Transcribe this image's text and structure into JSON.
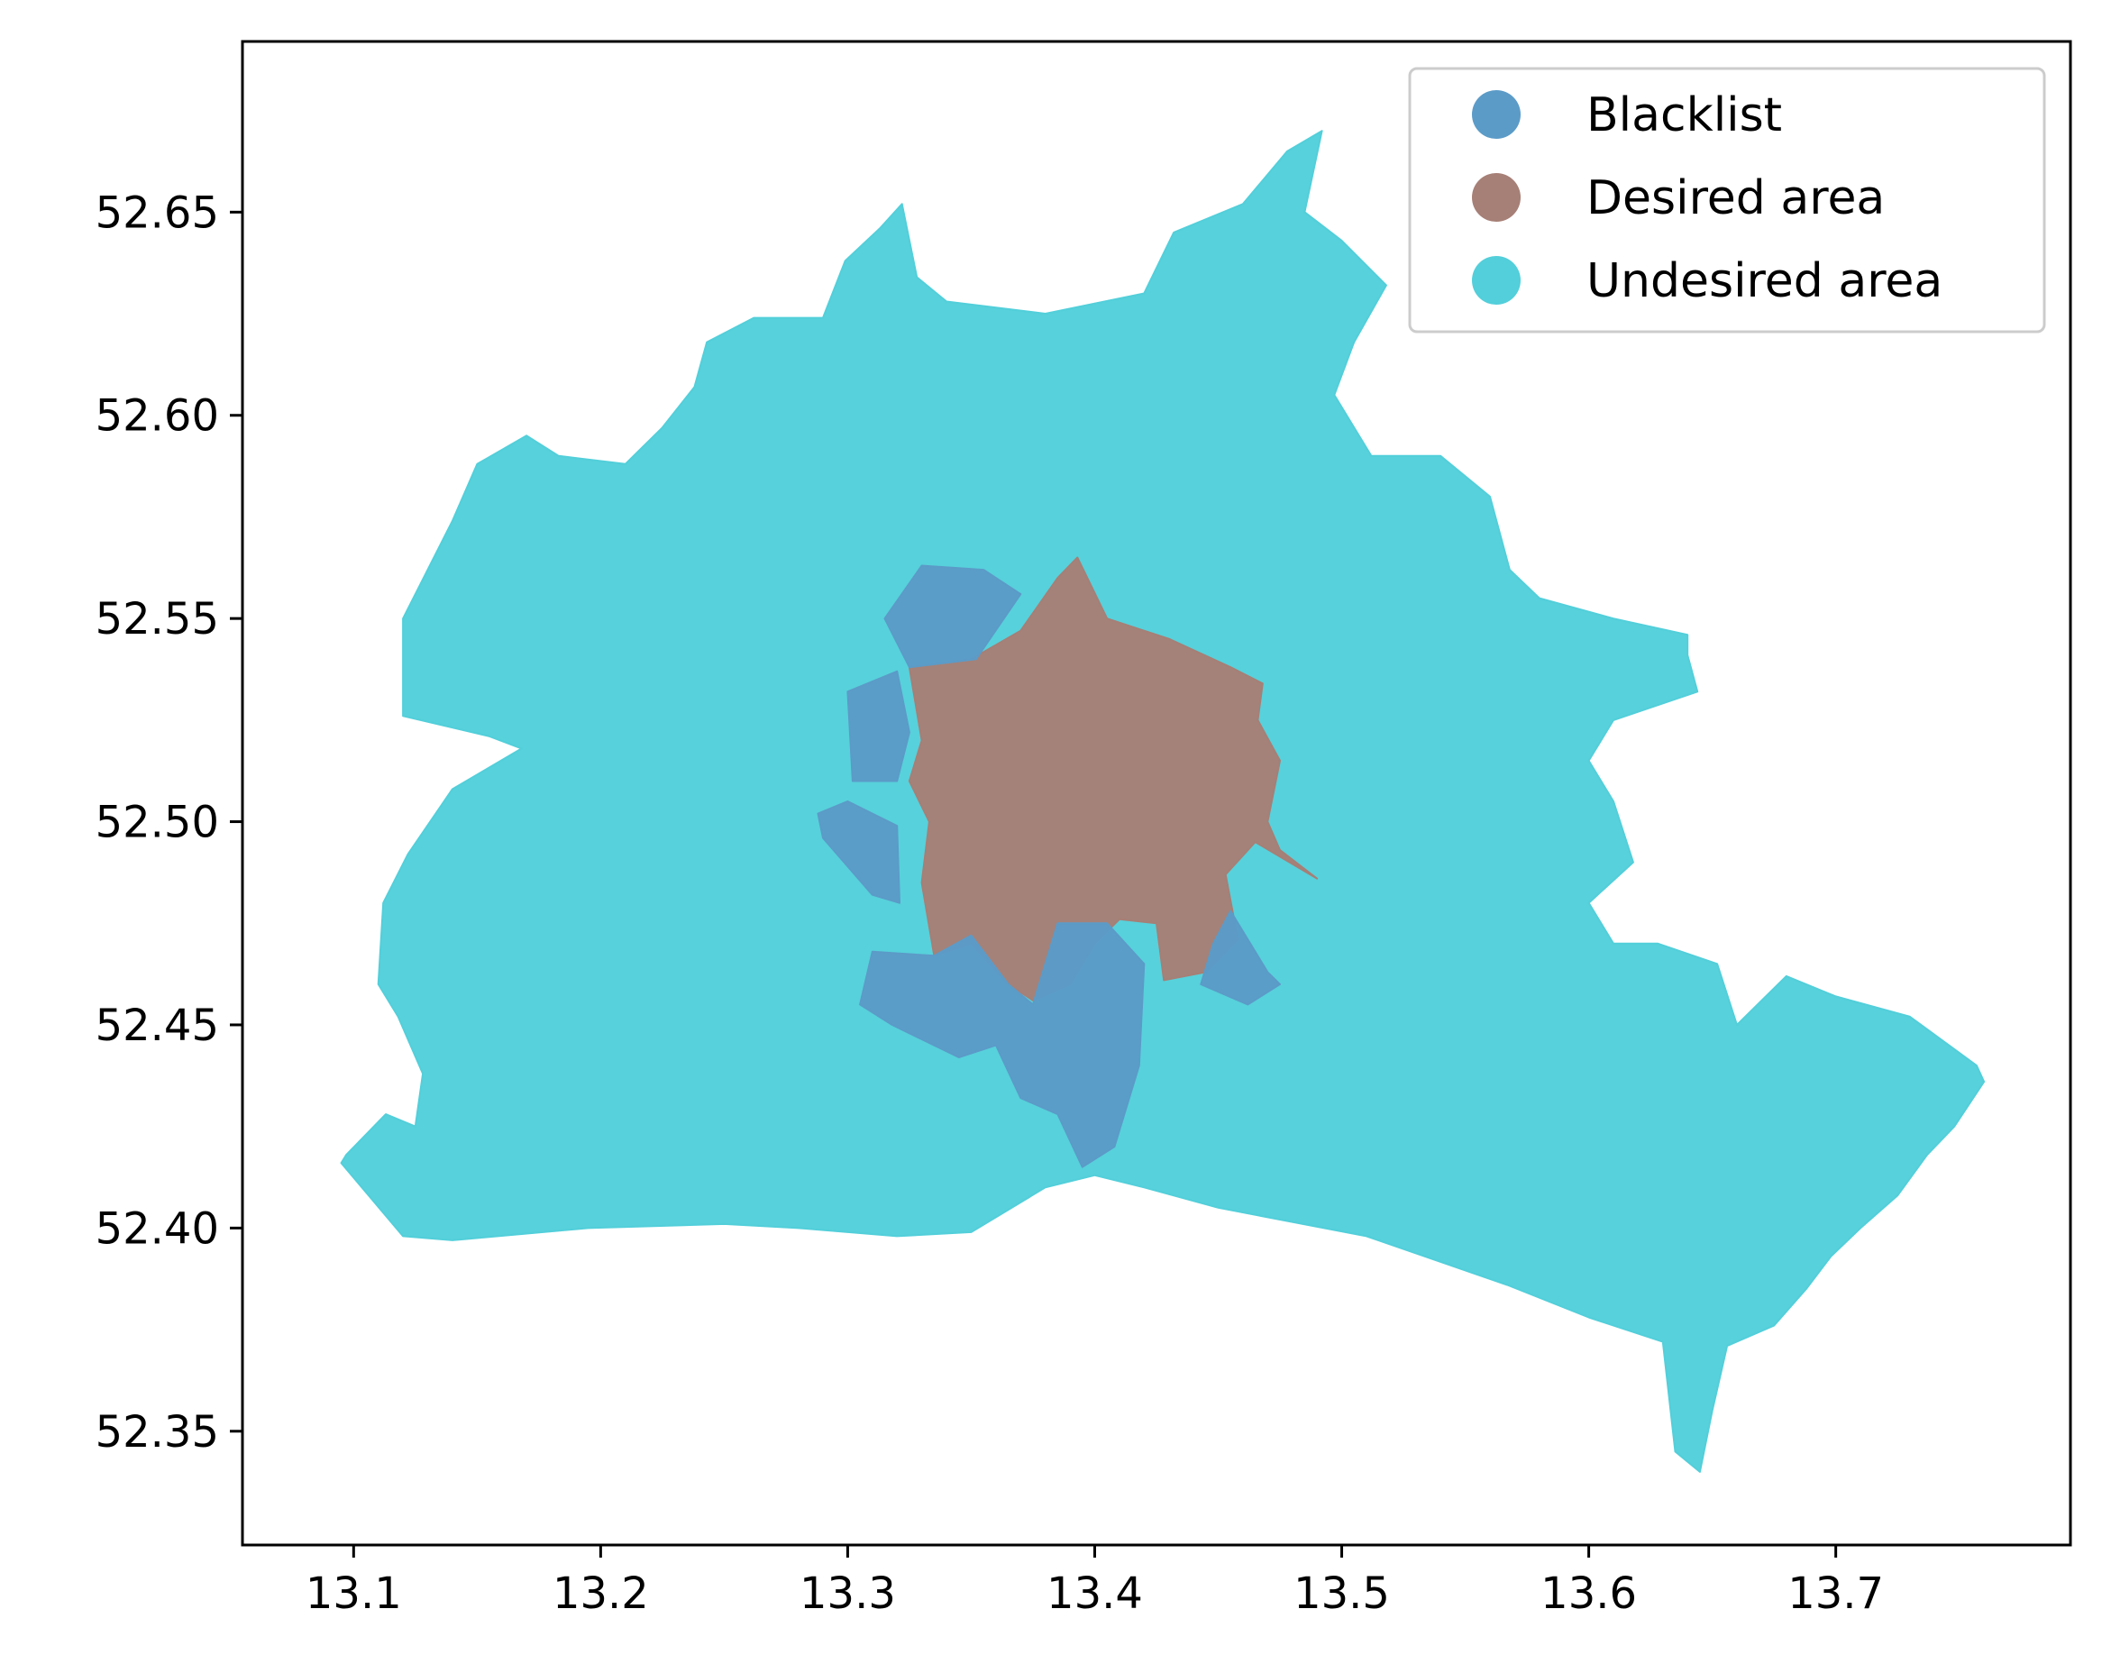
{
  "chart_data": {
    "type": "choropleth-map",
    "title": "",
    "xlabel": "",
    "ylabel": "",
    "xlim": [
      13.055,
      13.795
    ],
    "ylim": [
      52.322,
      52.692
    ],
    "xticks": [
      {
        "value": 13.1,
        "label": "13.1"
      },
      {
        "value": 13.2,
        "label": "13.2"
      },
      {
        "value": 13.3,
        "label": "13.3"
      },
      {
        "value": 13.4,
        "label": "13.4"
      },
      {
        "value": 13.5,
        "label": "13.5"
      },
      {
        "value": 13.6,
        "label": "13.6"
      },
      {
        "value": 13.7,
        "label": "13.7"
      }
    ],
    "yticks": [
      {
        "value": 52.35,
        "label": "52.35"
      },
      {
        "value": 52.4,
        "label": "52.40"
      },
      {
        "value": 52.45,
        "label": "52.45"
      },
      {
        "value": 52.5,
        "label": "52.50"
      },
      {
        "value": 52.55,
        "label": "52.55"
      },
      {
        "value": 52.6,
        "label": "52.60"
      },
      {
        "value": 52.65,
        "label": "52.65"
      }
    ],
    "legend": {
      "position": "top-right",
      "entries": [
        {
          "key": "blacklist",
          "label": "Blacklist",
          "color": "#5b9bc8"
        },
        {
          "key": "desired",
          "label": "Desired area",
          "color": "#a67f76"
        },
        {
          "key": "undesired",
          "label": "Undesired area",
          "color": "#52cfda"
        }
      ]
    },
    "regions": [
      {
        "name": "Undesired area",
        "key": "undesired",
        "color": "#52cfda",
        "outline": [
          [
            13.097,
            52.418
          ],
          [
            13.113,
            52.428
          ],
          [
            13.125,
            52.425
          ],
          [
            13.128,
            52.438
          ],
          [
            13.118,
            52.452
          ],
          [
            13.11,
            52.46
          ],
          [
            13.112,
            52.48
          ],
          [
            13.122,
            52.492
          ],
          [
            13.14,
            52.508
          ],
          [
            13.168,
            52.518
          ],
          [
            13.155,
            52.521
          ],
          [
            13.12,
            52.526
          ],
          [
            13.12,
            52.55
          ],
          [
            13.13,
            52.562
          ],
          [
            13.14,
            52.574
          ],
          [
            13.15,
            52.588
          ],
          [
            13.17,
            52.595
          ],
          [
            13.183,
            52.59
          ],
          [
            13.21,
            52.588
          ],
          [
            13.225,
            52.597
          ],
          [
            13.238,
            52.607
          ],
          [
            13.243,
            52.618
          ],
          [
            13.262,
            52.624
          ],
          [
            13.29,
            52.624
          ],
          [
            13.299,
            52.638
          ],
          [
            13.313,
            52.646
          ],
          [
            13.322,
            52.652
          ],
          [
            13.328,
            52.634
          ],
          [
            13.34,
            52.628
          ],
          [
            13.38,
            52.625
          ],
          [
            13.42,
            52.63
          ],
          [
            13.432,
            52.645
          ],
          [
            13.46,
            52.652
          ],
          [
            13.478,
            52.665
          ],
          [
            13.492,
            52.67
          ],
          [
            13.485,
            52.65
          ],
          [
            13.5,
            52.643
          ],
          [
            13.518,
            52.632
          ],
          [
            13.505,
            52.618
          ],
          [
            13.497,
            52.605
          ],
          [
            13.512,
            52.59
          ],
          [
            13.54,
            52.59
          ],
          [
            13.56,
            52.58
          ],
          [
            13.568,
            52.562
          ],
          [
            13.58,
            52.555
          ],
          [
            13.61,
            52.55
          ],
          [
            13.64,
            52.546
          ],
          [
            13.64,
            52.541
          ],
          [
            13.644,
            52.532
          ],
          [
            13.61,
            52.525
          ],
          [
            13.6,
            52.515
          ],
          [
            13.61,
            52.505
          ],
          [
            13.618,
            52.49
          ],
          [
            13.6,
            52.48
          ],
          [
            13.61,
            52.47
          ],
          [
            13.628,
            52.47
          ],
          [
            13.652,
            52.465
          ],
          [
            13.66,
            52.45
          ],
          [
            13.68,
            52.462
          ],
          [
            13.7,
            52.457
          ],
          [
            13.73,
            52.452
          ],
          [
            13.757,
            52.44
          ],
          [
            13.76,
            52.436
          ],
          [
            13.748,
            52.425
          ],
          [
            13.737,
            52.418
          ],
          [
            13.725,
            52.408
          ],
          [
            13.71,
            52.4
          ],
          [
            13.698,
            52.393
          ],
          [
            13.688,
            52.385
          ],
          [
            13.675,
            52.376
          ],
          [
            13.656,
            52.371
          ],
          [
            13.65,
            52.355
          ],
          [
            13.645,
            52.34
          ],
          [
            13.635,
            52.345
          ],
          [
            13.63,
            52.372
          ],
          [
            13.6,
            52.378
          ],
          [
            13.567,
            52.386
          ],
          [
            13.51,
            52.398
          ],
          [
            13.45,
            52.405
          ],
          [
            13.42,
            52.41
          ],
          [
            13.4,
            52.413
          ],
          [
            13.38,
            52.41
          ],
          [
            13.35,
            52.399
          ],
          [
            13.32,
            52.398
          ],
          [
            13.28,
            52.4
          ],
          [
            13.25,
            52.401
          ],
          [
            13.195,
            52.4
          ],
          [
            13.14,
            52.397
          ],
          [
            13.12,
            52.398
          ],
          [
            13.095,
            52.416
          ]
        ]
      },
      {
        "name": "Desired area",
        "key": "desired",
        "color": "#a67f76",
        "outline": [
          [
            13.35,
            52.54
          ],
          [
            13.37,
            52.547
          ],
          [
            13.385,
            52.56
          ],
          [
            13.393,
            52.565
          ],
          [
            13.405,
            52.55
          ],
          [
            13.43,
            52.545
          ],
          [
            13.455,
            52.538
          ],
          [
            13.468,
            52.534
          ],
          [
            13.466,
            52.525
          ],
          [
            13.475,
            52.515
          ],
          [
            13.47,
            52.5
          ],
          [
            13.475,
            52.493
          ],
          [
            13.49,
            52.486
          ],
          [
            13.465,
            52.495
          ],
          [
            13.453,
            52.487
          ],
          [
            13.458,
            52.471
          ],
          [
            13.445,
            52.463
          ],
          [
            13.428,
            52.461
          ],
          [
            13.425,
            52.475
          ],
          [
            13.41,
            52.476
          ],
          [
            13.4,
            52.47
          ],
          [
            13.39,
            52.46
          ],
          [
            13.375,
            52.456
          ],
          [
            13.365,
            52.46
          ],
          [
            13.35,
            52.47
          ],
          [
            13.335,
            52.467
          ],
          [
            13.33,
            52.485
          ],
          [
            13.333,
            52.5
          ],
          [
            13.325,
            52.51
          ],
          [
            13.33,
            52.52
          ],
          [
            13.325,
            52.538
          ]
        ]
      },
      {
        "name": "Blacklist north",
        "key": "blacklist",
        "color": "#5b9bc8",
        "outline": [
          [
            13.33,
            52.563
          ],
          [
            13.355,
            52.562
          ],
          [
            13.37,
            52.556
          ],
          [
            13.352,
            52.54
          ],
          [
            13.325,
            52.538
          ],
          [
            13.315,
            52.55
          ]
        ]
      },
      {
        "name": "Blacklist west",
        "key": "blacklist",
        "color": "#5b9bc8",
        "outline": [
          [
            13.3,
            52.532
          ],
          [
            13.32,
            52.537
          ],
          [
            13.325,
            52.522
          ],
          [
            13.32,
            52.51
          ],
          [
            13.302,
            52.51
          ]
        ]
      },
      {
        "name": "Blacklist southwest",
        "key": "blacklist",
        "color": "#5b9bc8",
        "outline": [
          [
            13.288,
            52.502
          ],
          [
            13.3,
            52.505
          ],
          [
            13.32,
            52.499
          ],
          [
            13.321,
            52.48
          ],
          [
            13.31,
            52.482
          ],
          [
            13.29,
            52.496
          ]
        ]
      },
      {
        "name": "Blacklist south",
        "key": "blacklist",
        "color": "#5b9bc8",
        "outline": [
          [
            13.31,
            52.468
          ],
          [
            13.335,
            52.467
          ],
          [
            13.35,
            52.472
          ],
          [
            13.365,
            52.46
          ],
          [
            13.375,
            52.455
          ],
          [
            13.385,
            52.475
          ],
          [
            13.405,
            52.475
          ],
          [
            13.42,
            52.465
          ],
          [
            13.418,
            52.44
          ],
          [
            13.408,
            52.42
          ],
          [
            13.395,
            52.415
          ],
          [
            13.385,
            52.428
          ],
          [
            13.37,
            52.432
          ],
          [
            13.36,
            52.445
          ],
          [
            13.345,
            52.442
          ],
          [
            13.318,
            52.45
          ],
          [
            13.305,
            52.455
          ]
        ]
      },
      {
        "name": "Blacklist east",
        "key": "blacklist",
        "color": "#5b9bc8",
        "outline": [
          [
            13.455,
            52.478
          ],
          [
            13.47,
            52.463
          ],
          [
            13.475,
            52.46
          ],
          [
            13.462,
            52.455
          ],
          [
            13.443,
            52.46
          ],
          [
            13.448,
            52.47
          ]
        ]
      }
    ]
  }
}
